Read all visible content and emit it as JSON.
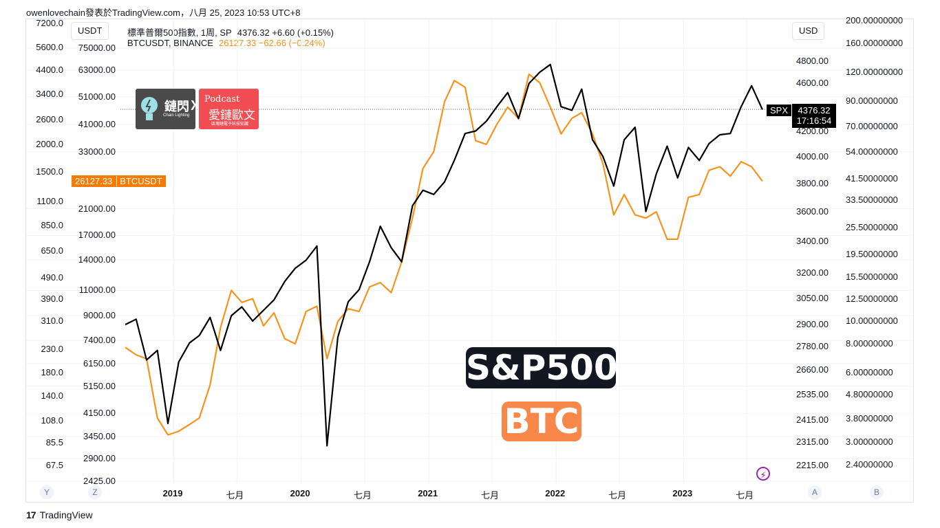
{
  "header": {
    "attribution": "owenlovechain發表於TradingView.com，八月 25, 2023 10:53 UTC+8"
  },
  "units": {
    "left": "USDT",
    "right": "USD"
  },
  "legend": {
    "spx_name": "標準普爾500指數, 1周, SP",
    "spx_values": "4376.32  +6.60 (+0.15%)",
    "btc_name": "BTCUSDT, BINANCE",
    "btc_values": "26127.33  −62.66 (−0.24%)"
  },
  "price_tags": {
    "btc_value": "26127.33",
    "btc_label": "BTCUSDT",
    "spx_label": "SPX",
    "spx_value": "4376.32",
    "spx_countdown": "17:16:54"
  },
  "overlay_text": {
    "spx": "S&P500",
    "btc": "BTC"
  },
  "logos": {
    "left_text": "鏈閃",
    "left_sub": "Chain Lighting",
    "cross": "X",
    "right_top": "Podcast",
    "right_main": "愛鏈歐文",
    "right_sub": "區塊鏈電子科技知識"
  },
  "axis_left_outer": [
    "7200.0",
    "5600.0",
    "4400.0",
    "3400.0",
    "2600.0",
    "2000.0",
    "1500.0",
    "1100.0",
    "850.0",
    "650.0",
    "490.0",
    "390.0",
    "310.0",
    "230.0",
    "180.0",
    "140.0",
    "108.0",
    "85.5",
    "67.5"
  ],
  "axis_left_inner": [
    "75000.00",
    "63000.00",
    "51000.00",
    "41000.00",
    "33000.00",
    "21000.00",
    "17000.00",
    "14000.00",
    "11000.00",
    "9000.00",
    "7400.00",
    "6150.00",
    "5150.00",
    "4150.00",
    "3450.00",
    "2900.00",
    "2425.00"
  ],
  "axis_right_inner": [
    "4800.00",
    "4600.00",
    "4200.00",
    "4000.00",
    "3800.00",
    "3600.00",
    "3400.00",
    "3200.00",
    "3050.00",
    "2900.00",
    "2780.00",
    "2660.00",
    "2535.00",
    "2415.00",
    "2315.00",
    "2215.00"
  ],
  "axis_right_outer": [
    "200.00000000",
    "160.00000000",
    "120.00000000",
    "90.00000000",
    "70.00000000",
    "54.00000000",
    "41.50000000",
    "33.50000000",
    "25.50000000",
    "19.50000000",
    "15.50000000",
    "12.50000000",
    "10.00000000",
    "8.00000000",
    "6.00000000",
    "4.80000000",
    "3.80000000",
    "3.00000000",
    "2.40000000"
  ],
  "time_axis": [
    "2019",
    "七月",
    "2020",
    "七月",
    "2021",
    "七月",
    "2022",
    "七月",
    "2023",
    "七月"
  ],
  "corner_buttons": {
    "y": "Y",
    "z": "Z",
    "a": "A",
    "b": "B"
  },
  "footer": {
    "brand_mark": "17",
    "brand": "TradingView"
  },
  "colors": {
    "spx": "#000000",
    "btc": "#f7931a",
    "grid": "#f0f3fa",
    "dotted": "#555555"
  },
  "chart_data": {
    "type": "line",
    "title": "",
    "x_range": [
      "2018-08",
      "2023-08"
    ],
    "log_scale": true,
    "grid": true,
    "series": [
      {
        "name": "BTCUSDT",
        "axis": "left (USDT)",
        "x": [
          "2018-08",
          "2018-09",
          "2018-10",
          "2018-11",
          "2018-12",
          "2019-01",
          "2019-02",
          "2019-03",
          "2019-04",
          "2019-05",
          "2019-06",
          "2019-07",
          "2019-08",
          "2019-09",
          "2019-10",
          "2019-11",
          "2019-12",
          "2020-01",
          "2020-02",
          "2020-03",
          "2020-04",
          "2020-05",
          "2020-06",
          "2020-07",
          "2020-08",
          "2020-09",
          "2020-10",
          "2020-11",
          "2020-12",
          "2021-01",
          "2021-02",
          "2021-03",
          "2021-04",
          "2021-05",
          "2021-06",
          "2021-07",
          "2021-08",
          "2021-09",
          "2021-10",
          "2021-11",
          "2021-12",
          "2022-01",
          "2022-02",
          "2022-03",
          "2022-04",
          "2022-05",
          "2022-06",
          "2022-07",
          "2022-08",
          "2022-09",
          "2022-10",
          "2022-11",
          "2022-12",
          "2023-01",
          "2023-02",
          "2023-03",
          "2023-04",
          "2023-05",
          "2023-06",
          "2023-07",
          "2023-08"
        ],
        "y": [
          7000,
          6600,
          6400,
          4000,
          3500,
          3600,
          3800,
          4000,
          5200,
          8200,
          11000,
          10000,
          10300,
          8300,
          9200,
          7500,
          7200,
          9300,
          9700,
          6400,
          8600,
          9500,
          9300,
          11300,
          11700,
          10800,
          13800,
          19500,
          28900,
          33000,
          49000,
          58000,
          55000,
          36000,
          35000,
          41000,
          47000,
          43000,
          61000,
          57000,
          47000,
          38000,
          43000,
          45000,
          38000,
          30000,
          20000,
          23500,
          20000,
          19500,
          20500,
          16500,
          16500,
          23000,
          23500,
          28500,
          29300,
          27200,
          30500,
          29300,
          26127
        ]
      },
      {
        "name": "SPX",
        "axis": "right (USD)",
        "x": [
          "2018-08",
          "2018-09",
          "2018-10",
          "2018-11",
          "2018-12",
          "2019-01",
          "2019-02",
          "2019-03",
          "2019-04",
          "2019-05",
          "2019-06",
          "2019-07",
          "2019-08",
          "2019-09",
          "2019-10",
          "2019-11",
          "2019-12",
          "2020-01",
          "2020-02",
          "2020-03",
          "2020-04",
          "2020-05",
          "2020-06",
          "2020-07",
          "2020-08",
          "2020-09",
          "2020-10",
          "2020-11",
          "2020-12",
          "2021-01",
          "2021-02",
          "2021-03",
          "2021-04",
          "2021-05",
          "2021-06",
          "2021-07",
          "2021-08",
          "2021-09",
          "2021-10",
          "2021-11",
          "2021-12",
          "2022-01",
          "2022-02",
          "2022-03",
          "2022-04",
          "2022-05",
          "2022-06",
          "2022-07",
          "2022-08",
          "2022-09",
          "2022-10",
          "2022-11",
          "2022-12",
          "2023-01",
          "2023-02",
          "2023-03",
          "2023-04",
          "2023-05",
          "2023-06",
          "2023-07",
          "2023-08"
        ],
        "y": [
          2900,
          2930,
          2710,
          2760,
          2400,
          2700,
          2800,
          2840,
          2940,
          2760,
          2950,
          3000,
          2920,
          2980,
          3040,
          3150,
          3230,
          3280,
          3370,
          2300,
          2830,
          3030,
          3100,
          3270,
          3500,
          3360,
          3270,
          3640,
          3750,
          3720,
          3810,
          3970,
          4180,
          4200,
          4280,
          4400,
          4520,
          4300,
          4600,
          4700,
          4770,
          4400,
          4370,
          4550,
          4130,
          4000,
          3780,
          4130,
          4230,
          3600,
          3870,
          4080,
          3840,
          4070,
          3970,
          4100,
          4170,
          4180,
          4400,
          4580,
          4376
        ]
      }
    ]
  }
}
